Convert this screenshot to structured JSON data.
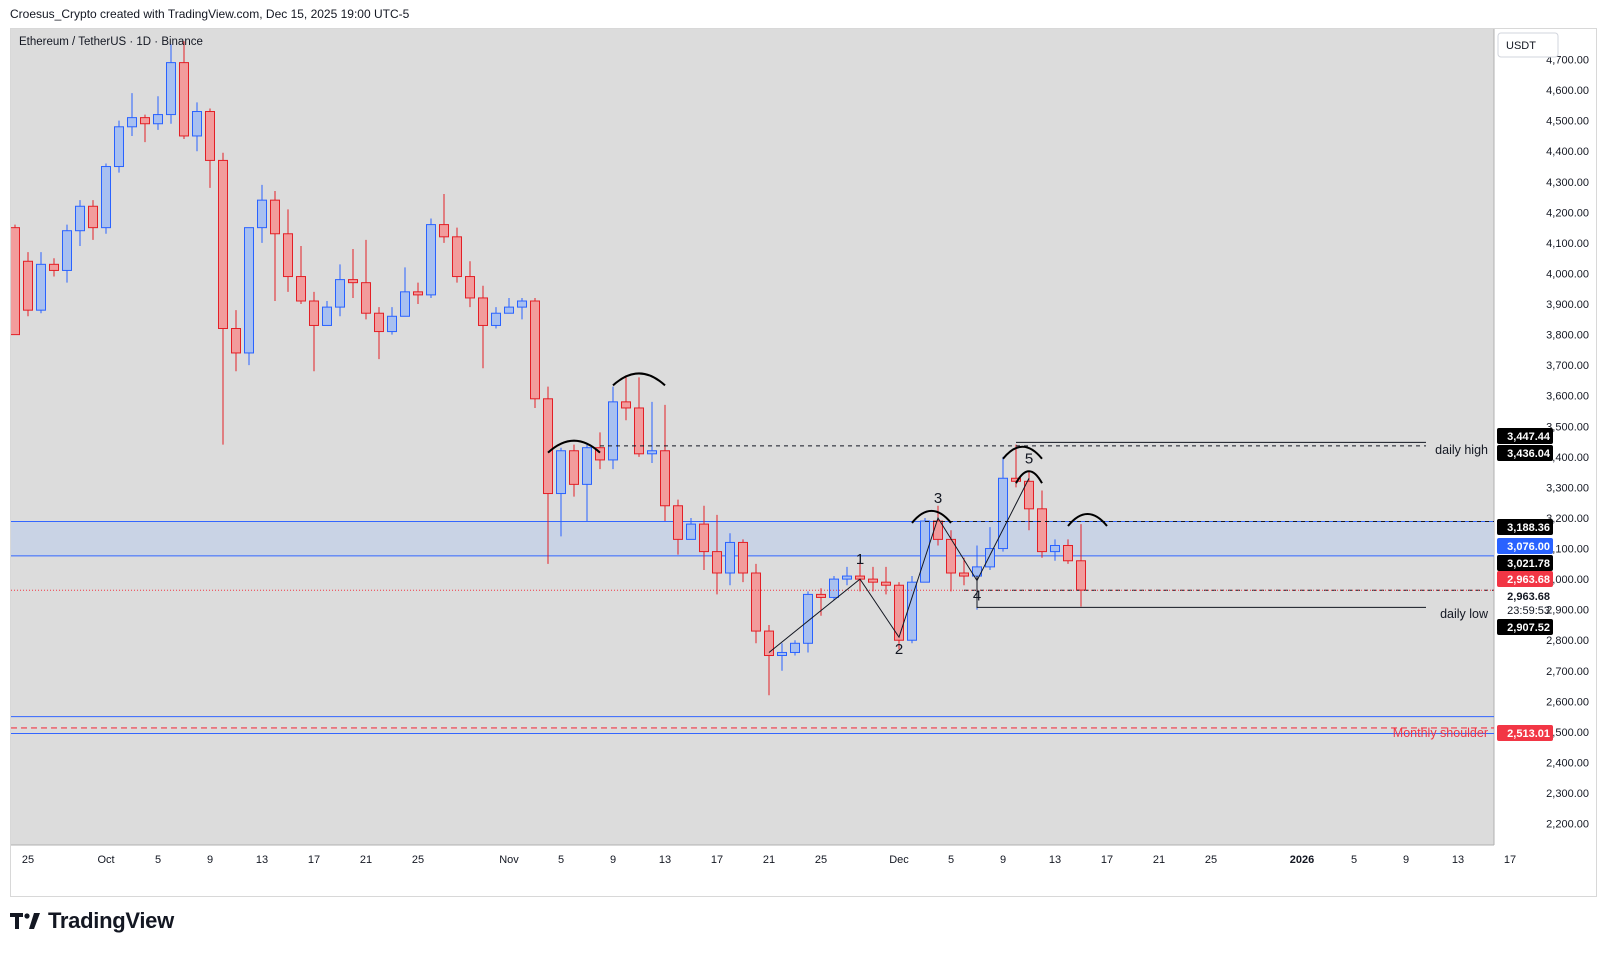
{
  "header": {
    "caption": "Croesus_Crypto created with TradingView.com, Dec 15, 2025 19:00 UTC-5"
  },
  "chart": {
    "symbol_title": "Ethereum / TetherUS · 1D · Binance",
    "currency_button": "USDT",
    "countdown": "23:59:53",
    "annotations": {
      "daily_high": "daily high",
      "daily_low": "daily low",
      "monthly_shoulder": "Monthly shoulder"
    },
    "wave_labels": [
      "1",
      "2",
      "3",
      "4",
      "5"
    ],
    "price_badges": {
      "p3447": "3,447.44",
      "p3436": "3,436.04",
      "p3188": "3,188.36",
      "p3076": "3,076.00",
      "p3021": "3,021.78",
      "p2963a": "2,963.68",
      "p2963b": "2,963.68",
      "p2907": "2,907.52",
      "p2513": "2,513.01"
    },
    "colors": {
      "bull": "#a8c0f0",
      "bull_border": "#2962ff",
      "bear": "#f29c9c",
      "bear_border": "#e31f26",
      "zone": "#c7d1e6",
      "zone_line": "#3366ff",
      "monthly": "#f23645",
      "background": "#dcdcdc"
    }
  },
  "footer": {
    "brand": "TradingView"
  },
  "chart_data": {
    "type": "candlestick",
    "title": "Ethereum / TetherUS · 1D · Binance",
    "y_axis": {
      "ticks": [
        2200,
        2300,
        2400,
        2500,
        2600,
        2700,
        2800,
        2900,
        3000,
        3100,
        3200,
        3300,
        3400,
        3500,
        3600,
        3700,
        3800,
        3900,
        4000,
        4100,
        4200,
        4300,
        4400,
        4500,
        4600,
        4700
      ],
      "tick_labels": [
        "2,200.00",
        "2,300.00",
        "2,400.00",
        "2,500.00",
        "2,600.00",
        "2,700.00",
        "2,800.00",
        "2,900.00",
        "3,000.00",
        "3,100.00",
        "3,200.00",
        "3,300.00",
        "3,400.00",
        "3,500.00",
        "3,600.00",
        "3,700.00",
        "3,800.00",
        "3,900.00",
        "4,000.00",
        "4,100.00",
        "4,200.00",
        "4,300.00",
        "4,400.00",
        "4,500.00",
        "4,600.00",
        "4,700.00"
      ],
      "range": [
        2130,
        4800
      ]
    },
    "x_axis": {
      "first_date": "2025-09-24",
      "tick_labels": [
        {
          "label": "25",
          "date": "2025-09-25"
        },
        {
          "label": "Oct",
          "date": "2025-10-01"
        },
        {
          "label": "5",
          "date": "2025-10-05"
        },
        {
          "label": "9",
          "date": "2025-10-09"
        },
        {
          "label": "13",
          "date": "2025-10-13"
        },
        {
          "label": "17",
          "date": "2025-10-17"
        },
        {
          "label": "21",
          "date": "2025-10-21"
        },
        {
          "label": "25",
          "date": "2025-10-25"
        },
        {
          "label": "Nov",
          "date": "2025-11-01"
        },
        {
          "label": "5",
          "date": "2025-11-05"
        },
        {
          "label": "9",
          "date": "2025-11-09"
        },
        {
          "label": "13",
          "date": "2025-11-13"
        },
        {
          "label": "17",
          "date": "2025-11-17"
        },
        {
          "label": "21",
          "date": "2025-11-21"
        },
        {
          "label": "25",
          "date": "2025-11-25"
        },
        {
          "label": "Dec",
          "date": "2025-12-01"
        },
        {
          "label": "5",
          "date": "2025-12-05"
        },
        {
          "label": "9",
          "date": "2025-12-09"
        },
        {
          "label": "13",
          "date": "2025-12-13"
        },
        {
          "label": "17",
          "date": "2025-12-17"
        },
        {
          "label": "21",
          "date": "2025-12-21"
        },
        {
          "label": "25",
          "date": "2025-12-25"
        },
        {
          "label": "2026",
          "date": "2026-01-01"
        },
        {
          "label": "5",
          "date": "2026-01-05"
        },
        {
          "label": "9",
          "date": "2026-01-09"
        },
        {
          "label": "13",
          "date": "2026-01-13"
        },
        {
          "label": "17",
          "date": "2026-01-17"
        }
      ]
    },
    "candles": [
      {
        "d": "2025-09-24",
        "o": 4150,
        "h": 4160,
        "c": 3800,
        "l": 3800
      },
      {
        "d": "2025-09-25",
        "o": 4040,
        "h": 4070,
        "c": 3880,
        "l": 3860
      },
      {
        "d": "2025-09-26",
        "o": 3880,
        "h": 4070,
        "c": 4030,
        "l": 3870
      },
      {
        "d": "2025-09-27",
        "o": 4030,
        "h": 4050,
        "c": 4010,
        "l": 3990
      },
      {
        "d": "2025-09-28",
        "o": 4010,
        "h": 4160,
        "c": 4140,
        "l": 3970
      },
      {
        "d": "2025-09-29",
        "o": 4140,
        "h": 4240,
        "c": 4220,
        "l": 4090
      },
      {
        "d": "2025-09-30",
        "o": 4220,
        "h": 4240,
        "c": 4150,
        "l": 4110
      },
      {
        "d": "2025-10-01",
        "o": 4150,
        "h": 4360,
        "c": 4350,
        "l": 4130
      },
      {
        "d": "2025-10-02",
        "o": 4350,
        "h": 4500,
        "c": 4480,
        "l": 4330
      },
      {
        "d": "2025-10-03",
        "o": 4480,
        "h": 4590,
        "c": 4510,
        "l": 4450
      },
      {
        "d": "2025-10-04",
        "o": 4510,
        "h": 4520,
        "c": 4490,
        "l": 4430
      },
      {
        "d": "2025-10-05",
        "o": 4490,
        "h": 4580,
        "c": 4520,
        "l": 4470
      },
      {
        "d": "2025-10-06",
        "o": 4520,
        "h": 4750,
        "c": 4690,
        "l": 4490
      },
      {
        "d": "2025-10-07",
        "o": 4690,
        "h": 4760,
        "c": 4450,
        "l": 4440
      },
      {
        "d": "2025-10-08",
        "o": 4450,
        "h": 4560,
        "c": 4530,
        "l": 4400
      },
      {
        "d": "2025-10-09",
        "o": 4530,
        "h": 4540,
        "c": 4370,
        "l": 4280
      },
      {
        "d": "2025-10-10",
        "o": 4370,
        "h": 4395,
        "c": 3820,
        "l": 3440
      },
      {
        "d": "2025-10-11",
        "o": 3820,
        "h": 3880,
        "c": 3740,
        "l": 3680
      },
      {
        "d": "2025-10-12",
        "o": 3740,
        "h": 4150,
        "c": 4150,
        "l": 3700
      },
      {
        "d": "2025-10-13",
        "o": 4150,
        "h": 4290,
        "c": 4240,
        "l": 4100
      },
      {
        "d": "2025-10-14",
        "o": 4240,
        "h": 4270,
        "c": 4130,
        "l": 3910
      },
      {
        "d": "2025-10-15",
        "o": 4130,
        "h": 4210,
        "c": 3990,
        "l": 3940
      },
      {
        "d": "2025-10-16",
        "o": 3990,
        "h": 4090,
        "c": 3910,
        "l": 3900
      },
      {
        "d": "2025-10-17",
        "o": 3910,
        "h": 3940,
        "c": 3830,
        "l": 3680
      },
      {
        "d": "2025-10-18",
        "o": 3830,
        "h": 3910,
        "c": 3890,
        "l": 3830
      },
      {
        "d": "2025-10-19",
        "o": 3890,
        "h": 4030,
        "c": 3980,
        "l": 3860
      },
      {
        "d": "2025-10-20",
        "o": 3980,
        "h": 4080,
        "c": 3970,
        "l": 3920
      },
      {
        "d": "2025-10-21",
        "o": 3970,
        "h": 4110,
        "c": 3870,
        "l": 3850
      },
      {
        "d": "2025-10-22",
        "o": 3870,
        "h": 3890,
        "c": 3810,
        "l": 3720
      },
      {
        "d": "2025-10-23",
        "o": 3810,
        "h": 3890,
        "c": 3860,
        "l": 3800
      },
      {
        "d": "2025-10-24",
        "o": 3860,
        "h": 4020,
        "c": 3940,
        "l": 3860
      },
      {
        "d": "2025-10-25",
        "o": 3940,
        "h": 3970,
        "c": 3930,
        "l": 3900
      },
      {
        "d": "2025-10-26",
        "o": 3930,
        "h": 4180,
        "c": 4160,
        "l": 3920
      },
      {
        "d": "2025-10-27",
        "o": 4160,
        "h": 4260,
        "c": 4120,
        "l": 4100
      },
      {
        "d": "2025-10-28",
        "o": 4120,
        "h": 4150,
        "c": 3990,
        "l": 3970
      },
      {
        "d": "2025-10-29",
        "o": 3990,
        "h": 4040,
        "c": 3920,
        "l": 3890
      },
      {
        "d": "2025-10-30",
        "o": 3920,
        "h": 3960,
        "c": 3830,
        "l": 3690
      },
      {
        "d": "2025-10-31",
        "o": 3830,
        "h": 3890,
        "c": 3870,
        "l": 3820
      },
      {
        "d": "2025-11-01",
        "o": 3870,
        "h": 3920,
        "c": 3890,
        "l": 3870
      },
      {
        "d": "2025-11-02",
        "o": 3890,
        "h": 3920,
        "c": 3910,
        "l": 3850
      },
      {
        "d": "2025-11-03",
        "o": 3910,
        "h": 3920,
        "c": 3590,
        "l": 3560
      },
      {
        "d": "2025-11-04",
        "o": 3590,
        "h": 3630,
        "c": 3280,
        "l": 3050
      },
      {
        "d": "2025-11-05",
        "o": 3280,
        "h": 3430,
        "c": 3420,
        "l": 3140
      },
      {
        "d": "2025-11-06",
        "o": 3420,
        "h": 3440,
        "c": 3310,
        "l": 3270
      },
      {
        "d": "2025-11-07",
        "o": 3310,
        "h": 3440,
        "c": 3430,
        "l": 3190
      },
      {
        "d": "2025-11-08",
        "o": 3430,
        "h": 3480,
        "c": 3390,
        "l": 3360
      },
      {
        "d": "2025-11-09",
        "o": 3390,
        "h": 3630,
        "c": 3580,
        "l": 3360
      },
      {
        "d": "2025-11-10",
        "o": 3580,
        "h": 3660,
        "c": 3560,
        "l": 3520
      },
      {
        "d": "2025-11-11",
        "o": 3560,
        "h": 3660,
        "c": 3410,
        "l": 3400
      },
      {
        "d": "2025-11-12",
        "o": 3410,
        "h": 3580,
        "c": 3420,
        "l": 3380
      },
      {
        "d": "2025-11-13",
        "o": 3420,
        "h": 3570,
        "c": 3240,
        "l": 3190
      },
      {
        "d": "2025-11-14",
        "o": 3240,
        "h": 3260,
        "c": 3130,
        "l": 3080
      },
      {
        "d": "2025-11-15",
        "o": 3130,
        "h": 3200,
        "c": 3180,
        "l": 3130
      },
      {
        "d": "2025-11-16",
        "o": 3180,
        "h": 3240,
        "c": 3090,
        "l": 3030
      },
      {
        "d": "2025-11-17",
        "o": 3090,
        "h": 3210,
        "c": 3020,
        "l": 2950
      },
      {
        "d": "2025-11-18",
        "o": 3020,
        "h": 3150,
        "c": 3120,
        "l": 2980
      },
      {
        "d": "2025-11-19",
        "o": 3120,
        "h": 3130,
        "c": 3020,
        "l": 2990
      },
      {
        "d": "2025-11-20",
        "o": 3020,
        "h": 3050,
        "c": 2830,
        "l": 2790
      },
      {
        "d": "2025-11-21",
        "o": 2830,
        "h": 2850,
        "c": 2750,
        "l": 2620
      },
      {
        "d": "2025-11-22",
        "o": 2750,
        "h": 2790,
        "c": 2760,
        "l": 2700
      },
      {
        "d": "2025-11-23",
        "o": 2760,
        "h": 2800,
        "c": 2790,
        "l": 2750
      },
      {
        "d": "2025-11-24",
        "o": 2790,
        "h": 2960,
        "c": 2950,
        "l": 2760
      },
      {
        "d": "2025-11-25",
        "o": 2950,
        "h": 2970,
        "c": 2940,
        "l": 2880
      },
      {
        "d": "2025-11-26",
        "o": 2940,
        "h": 3010,
        "c": 3000,
        "l": 2930
      },
      {
        "d": "2025-11-27",
        "o": 3000,
        "h": 3040,
        "c": 3010,
        "l": 2980
      },
      {
        "d": "2025-11-28",
        "o": 3010,
        "h": 3060,
        "c": 3000,
        "l": 2960
      },
      {
        "d": "2025-11-29",
        "o": 3000,
        "h": 3040,
        "c": 2990,
        "l": 2960
      },
      {
        "d": "2025-11-30",
        "o": 2990,
        "h": 3040,
        "c": 2980,
        "l": 2950
      },
      {
        "d": "2025-12-01",
        "o": 2980,
        "h": 2990,
        "c": 2800,
        "l": 2770
      },
      {
        "d": "2025-12-02",
        "o": 2800,
        "h": 3010,
        "c": 2990,
        "l": 2790
      },
      {
        "d": "2025-12-03",
        "o": 2990,
        "h": 3200,
        "c": 3190,
        "l": 2990
      },
      {
        "d": "2025-12-04",
        "o": 3190,
        "h": 3240,
        "c": 3130,
        "l": 3110
      },
      {
        "d": "2025-12-05",
        "o": 3130,
        "h": 3160,
        "c": 3020,
        "l": 2960
      },
      {
        "d": "2025-12-06",
        "o": 3020,
        "h": 3070,
        "c": 3010,
        "l": 2980
      },
      {
        "d": "2025-12-07",
        "o": 3010,
        "h": 3110,
        "c": 3040,
        "l": 2900
      },
      {
        "d": "2025-12-08",
        "o": 3040,
        "h": 3170,
        "c": 3100,
        "l": 3030
      },
      {
        "d": "2025-12-09",
        "o": 3100,
        "h": 3400,
        "c": 3330,
        "l": 3090
      },
      {
        "d": "2025-12-10",
        "o": 3330,
        "h": 3440,
        "c": 3320,
        "l": 3300
      },
      {
        "d": "2025-12-11",
        "o": 3320,
        "h": 3350,
        "c": 3230,
        "l": 3160
      },
      {
        "d": "2025-12-12",
        "o": 3230,
        "h": 3290,
        "c": 3090,
        "l": 3070
      },
      {
        "d": "2025-12-13",
        "o": 3090,
        "h": 3130,
        "c": 3110,
        "l": 3060
      },
      {
        "d": "2025-12-14",
        "o": 3110,
        "h": 3130,
        "c": 3060,
        "l": 3050
      },
      {
        "d": "2025-12-15",
        "o": 3060,
        "h": 3180,
        "c": 2964,
        "l": 2910
      }
    ],
    "zone": {
      "top": 3188.36,
      "bottom": 3076.0
    },
    "levels": {
      "daily_high": 3447.44,
      "daily_high_dash": 3436.04,
      "zone_top_dash": 3188.36,
      "dash_2963": 2963.68,
      "current_price": 2963.68,
      "daily_low": 2907.52,
      "monthly_shoulder": 2513.01,
      "monthly_band_top": 2550,
      "monthly_band_bottom": 2495
    },
    "wave_points": [
      {
        "label": "1",
        "d": "2025-11-28",
        "p": 3000
      },
      {
        "label": "2",
        "d": "2025-12-01",
        "p": 2810
      },
      {
        "label": "3",
        "d": "2025-12-04",
        "p": 3200
      },
      {
        "label": "4",
        "d": "2025-12-07",
        "p": 2995
      },
      {
        "label": "5",
        "d": "2025-12-11",
        "p": 3330
      }
    ],
    "wave_start": {
      "d": "2025-11-21",
      "p": 2760
    }
  }
}
